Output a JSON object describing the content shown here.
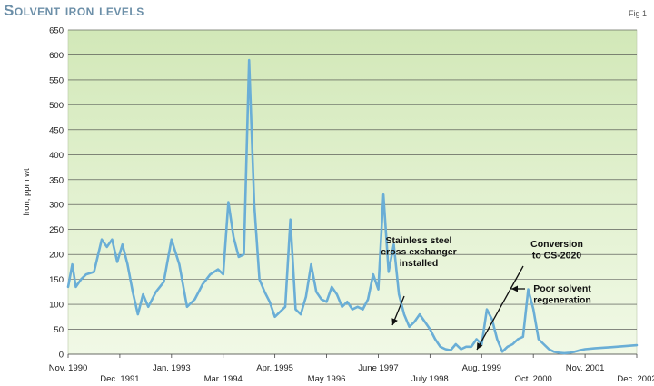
{
  "chart_data": {
    "type": "line",
    "title": "Solvent iron levels",
    "figure_label": "Fig 1",
    "xlabel": "",
    "ylabel": "Iron, ppm wt",
    "ylim": [
      0,
      650
    ],
    "yticks": [
      0,
      50,
      100,
      150,
      200,
      250,
      300,
      350,
      400,
      450,
      500,
      550,
      600,
      650
    ],
    "grid": true,
    "x_tick_labels": [
      "Nov. 1990",
      "Dec. 1991",
      "Jan. 1993",
      "Mar. 1994",
      "Apr. 1995",
      "May 1996",
      "June 1997",
      "July 1998",
      "Aug. 1999",
      "Oct. 2000",
      "Nov. 2001",
      "Dec. 2002"
    ],
    "series": [
      {
        "color": "#6aaed6",
        "x": [
          0,
          0.08,
          0.15,
          0.25,
          0.35,
          0.5,
          0.65,
          0.75,
          0.85,
          0.95,
          1.05,
          1.15,
          1.25,
          1.35,
          1.45,
          1.55,
          1.7,
          1.85,
          2.0,
          2.15,
          2.3,
          2.45,
          2.6,
          2.75,
          2.9,
          3.0,
          3.1,
          3.2,
          3.3,
          3.4,
          3.5,
          3.6,
          3.7,
          3.8,
          3.9,
          4.0,
          4.1,
          4.2,
          4.3,
          4.4,
          4.5,
          4.6,
          4.7,
          4.8,
          4.9,
          5.0,
          5.1,
          5.2,
          5.3,
          5.4,
          5.5,
          5.6,
          5.7,
          5.8,
          5.9,
          6.0,
          6.1,
          6.2,
          6.3,
          6.4,
          6.5,
          6.6,
          6.7,
          6.8,
          6.9,
          7.0,
          7.1,
          7.2,
          7.3,
          7.4,
          7.5,
          7.6,
          7.7,
          7.8,
          7.9,
          8.0,
          8.1,
          8.2,
          8.3,
          8.4,
          8.5,
          8.6,
          8.7,
          8.8,
          8.9,
          9.0,
          9.1,
          9.2,
          9.3,
          9.4,
          9.5,
          9.6,
          9.7,
          9.8,
          9.9,
          10.0,
          10.2,
          10.5,
          11.0
        ],
        "y": [
          135,
          180,
          135,
          150,
          160,
          165,
          230,
          215,
          230,
          185,
          220,
          180,
          125,
          80,
          120,
          95,
          125,
          145,
          230,
          180,
          95,
          110,
          140,
          160,
          170,
          160,
          305,
          235,
          195,
          200,
          590,
          300,
          150,
          125,
          105,
          75,
          85,
          95,
          270,
          90,
          80,
          115,
          180,
          125,
          110,
          105,
          135,
          120,
          95,
          105,
          90,
          95,
          90,
          110,
          160,
          130,
          320,
          165,
          220,
          120,
          80,
          55,
          65,
          80,
          65,
          50,
          30,
          15,
          10,
          8,
          20,
          10,
          15,
          15,
          30,
          20,
          90,
          70,
          30,
          5,
          15,
          20,
          30,
          35,
          130,
          90,
          30,
          20,
          10,
          5,
          3,
          2,
          3,
          5,
          8,
          10,
          12,
          14,
          18
        ]
      }
    ],
    "annotations": [
      {
        "lines": [
          "Stainless steel",
          "cross exchanger",
          "installed"
        ],
        "x": 6.55,
        "y": 45
      },
      {
        "lines": [
          "Conversion",
          "to CS-2020"
        ],
        "x": 7.55,
        "y": 8
      },
      {
        "lines": [
          "Poor solvent",
          "regeneration"
        ],
        "x": 8.7,
        "y": 135
      }
    ]
  }
}
